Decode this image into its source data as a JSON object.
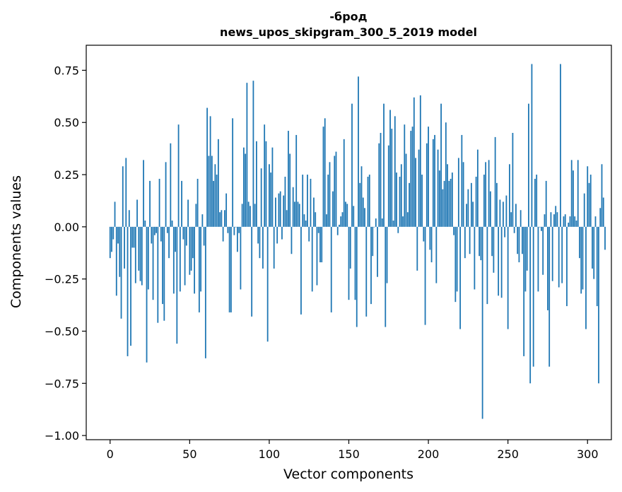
{
  "chart_data": {
    "type": "bar",
    "title": "-брод",
    "subtitle": "news_upos_skipgram_300_5_2019 model",
    "xlabel": "Vector components",
    "ylabel": "Components values",
    "xlim": [
      -15,
      315
    ],
    "ylim": [
      -1.02,
      0.87
    ],
    "xticks": [
      0,
      50,
      100,
      150,
      200,
      250,
      300
    ],
    "xtick_labels": [
      "0",
      "50",
      "100",
      "150",
      "200",
      "250",
      "300"
    ],
    "yticks": [
      0.75,
      0.5,
      0.25,
      0.0,
      -0.25,
      -0.5,
      -0.75,
      -1.0
    ],
    "ytick_labels": [
      "0.75",
      "0.50",
      "0.25",
      "0.00",
      "−0.25",
      "−0.50",
      "−0.75",
      "−1.00"
    ],
    "grid": false,
    "bar_color": "#1f77b4",
    "values": [
      -0.15,
      -0.12,
      -0.06,
      0.12,
      -0.33,
      -0.08,
      -0.24,
      -0.44,
      0.29,
      -0.2,
      0.33,
      -0.62,
      0.08,
      -0.57,
      -0.1,
      -0.1,
      -0.27,
      0.13,
      -0.21,
      -0.26,
      -0.28,
      0.32,
      0.03,
      -0.65,
      -0.3,
      0.22,
      -0.08,
      -0.35,
      -0.04,
      -0.03,
      -0.46,
      0.23,
      -0.07,
      -0.37,
      -0.45,
      0.31,
      -0.03,
      -0.15,
      0.4,
      0.03,
      -0.32,
      -0.12,
      -0.56,
      0.49,
      -0.31,
      0.22,
      -0.06,
      -0.28,
      -0.09,
      0.13,
      -0.23,
      -0.21,
      -0.15,
      -0.32,
      0.11,
      0.23,
      -0.41,
      -0.31,
      0.06,
      -0.09,
      -0.63,
      0.57,
      0.34,
      0.53,
      0.34,
      0.22,
      0.3,
      0.25,
      0.42,
      0.07,
      0.08,
      -0.07,
      0.08,
      0.16,
      -0.03,
      -0.41,
      -0.41,
      0.52,
      -0.04,
      0.0,
      -0.12,
      -0.03,
      -0.3,
      0.11,
      0.38,
      0.35,
      0.69,
      0.12,
      0.1,
      -0.43,
      0.7,
      0.11,
      0.41,
      -0.08,
      -0.15,
      0.28,
      -0.2,
      0.49,
      0.41,
      -0.55,
      0.3,
      0.26,
      0.38,
      -0.2,
      0.14,
      -0.08,
      0.16,
      0.17,
      -0.06,
      0.15,
      0.24,
      0.08,
      0.46,
      0.35,
      -0.13,
      0.19,
      0.12,
      0.44,
      0.12,
      0.11,
      -0.42,
      0.25,
      0.06,
      0.03,
      0.25,
      -0.07,
      0.23,
      -0.31,
      0.14,
      0.07,
      -0.28,
      -0.03,
      -0.17,
      -0.17,
      0.48,
      0.52,
      0.06,
      0.25,
      0.31,
      -0.41,
      0.17,
      0.34,
      0.36,
      -0.04,
      0.01,
      0.05,
      0.07,
      0.42,
      0.12,
      0.11,
      -0.35,
      -0.2,
      0.59,
      0.1,
      -0.35,
      -0.48,
      0.72,
      0.21,
      0.29,
      0.14,
      0.09,
      -0.43,
      0.24,
      0.25,
      -0.37,
      -0.14,
      0.0,
      0.04,
      -0.24,
      0.4,
      0.45,
      0.04,
      0.59,
      -0.48,
      -0.27,
      0.39,
      0.56,
      0.47,
      0.03,
      0.53,
      0.26,
      -0.03,
      0.24,
      0.3,
      0.05,
      0.49,
      0.35,
      0.07,
      0.21,
      0.46,
      0.48,
      0.62,
      0.33,
      -0.21,
      0.37,
      0.63,
      0.25,
      -0.07,
      -0.47,
      0.4,
      0.48,
      -0.11,
      -0.17,
      0.42,
      0.44,
      -0.27,
      0.37,
      0.27,
      0.59,
      0.18,
      0.22,
      0.5,
      0.3,
      0.22,
      0.23,
      0.26,
      -0.04,
      -0.36,
      -0.31,
      0.33,
      -0.49,
      0.44,
      0.31,
      -0.15,
      0.11,
      0.18,
      -0.13,
      0.21,
      0.12,
      -0.3,
      0.24,
      0.37,
      -0.14,
      -0.16,
      -0.92,
      0.25,
      0.31,
      -0.37,
      0.32,
      0.17,
      -0.14,
      -0.22,
      0.43,
      0.21,
      -0.33,
      0.13,
      -0.34,
      0.12,
      -0.05,
      0.15,
      -0.49,
      0.3,
      0.07,
      0.45,
      -0.03,
      0.11,
      -0.13,
      -0.17,
      0.08,
      -0.13,
      -0.62,
      -0.31,
      -0.21,
      0.59,
      -0.75,
      0.78,
      -0.67,
      0.23,
      0.25,
      -0.31,
      0.0,
      -0.02,
      -0.23,
      0.06,
      0.22,
      -0.4,
      -0.67,
      0.07,
      -0.26,
      0.06,
      0.1,
      0.07,
      -0.29,
      0.78,
      -0.27,
      0.05,
      0.06,
      -0.38,
      0.02,
      0.05,
      0.32,
      0.27,
      0.05,
      0.03,
      0.32,
      -0.15,
      -0.32,
      -0.3,
      0.16,
      -0.49,
      0.29,
      0.21,
      0.25,
      -0.2,
      -0.25,
      0.05,
      -0.38,
      -0.75,
      0.09,
      0.3,
      0.14,
      -0.11
    ]
  }
}
